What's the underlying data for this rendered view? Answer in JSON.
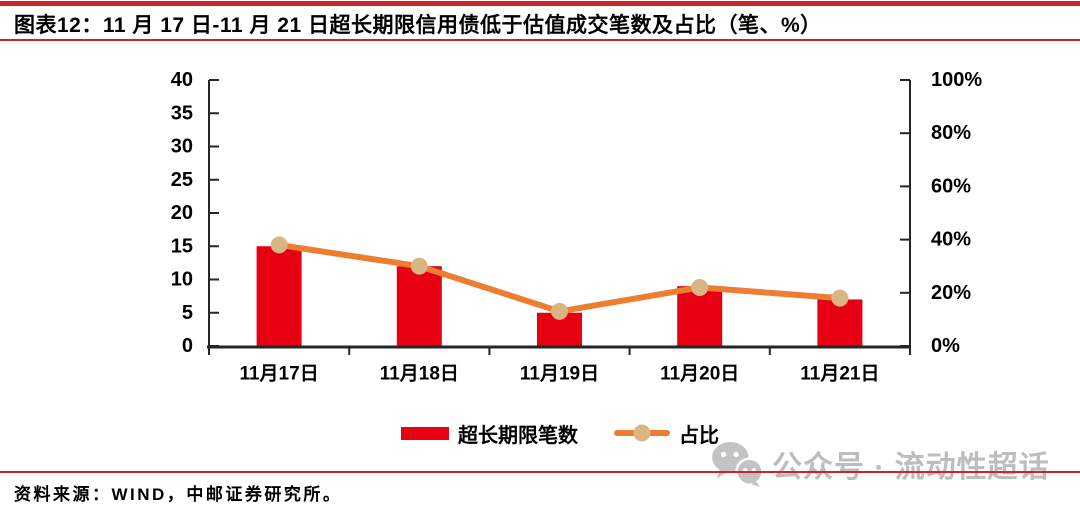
{
  "header": {
    "title": "图表12：11 月 17 日-11 月 21 日超长期限信用债低于估值成交笔数及占比（笔、%）"
  },
  "colors": {
    "rule_red": "#d0222b",
    "bar_red": "#e60012",
    "line_orange": "#ed7d31",
    "marker_tan": "#d9b584",
    "axis_black": "#262626",
    "watermark_gray": "#bdbdbd"
  },
  "chart_data": {
    "type": "bar",
    "subtype": "combo-bar-line-dual-axis",
    "categories": [
      "11月17日",
      "11月18日",
      "11月19日",
      "11月20日",
      "11月21日"
    ],
    "series": [
      {
        "name": "超长期限笔数",
        "type": "bar",
        "axis": "left",
        "color": "#e60012",
        "values": [
          15,
          12,
          5,
          9,
          7
        ]
      },
      {
        "name": "占比",
        "type": "line",
        "axis": "right",
        "color": "#ed7d31",
        "marker_color": "#d9b584",
        "unit": "%",
        "values": [
          38,
          30,
          13,
          22,
          18
        ]
      }
    ],
    "left_axis": {
      "min": 0,
      "max": 40,
      "step": 5,
      "ticks": [
        "0",
        "5",
        "10",
        "15",
        "20",
        "25",
        "30",
        "35",
        "40"
      ]
    },
    "right_axis": {
      "min": 0,
      "max": 100,
      "step": 20,
      "suffix": "%",
      "ticks": [
        "0%",
        "20%",
        "40%",
        "60%",
        "80%",
        "100%"
      ]
    },
    "grid": false,
    "legend_position": "bottom",
    "title": "图表12：11 月 17 日-11 月 21 日超长期限信用债低于估值成交笔数及占比（笔、%）"
  },
  "watermark": {
    "icon": "wechat-icon",
    "text": "公众号 · 流动性超话"
  },
  "footer": {
    "source": "资料来源：WIND，中邮证券研究所。"
  }
}
